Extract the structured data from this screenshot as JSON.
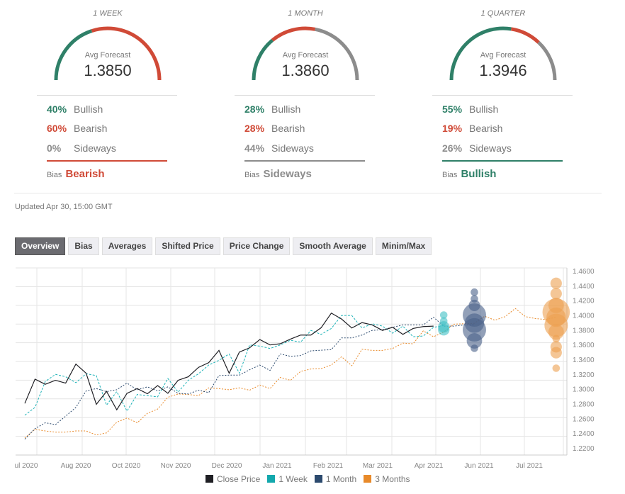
{
  "cards": [
    {
      "title": "1 WEEK",
      "avg_label": "Avg Forecast",
      "avg": "1.3850",
      "bullish": "40%",
      "bearish": "60%",
      "sideways": "0%",
      "bullish_label": "Bullish",
      "bearish_label": "Bearish",
      "sideways_label": "Sideways",
      "bias_label": "Bias",
      "bias": "Bearish",
      "bias_color": "#d04a37",
      "gauge": [
        40,
        60,
        0
      ]
    },
    {
      "title": "1 MONTH",
      "avg_label": "Avg Forecast",
      "avg": "1.3860",
      "bullish": "28%",
      "bearish": "28%",
      "sideways": "44%",
      "bullish_label": "Bullish",
      "bearish_label": "Bearish",
      "sideways_label": "Sideways",
      "bias_label": "Bias",
      "bias": "Sideways",
      "bias_color": "#8c8c8c",
      "gauge": [
        28,
        28,
        44
      ]
    },
    {
      "title": "1 QUARTER",
      "avg_label": "Avg Forecast",
      "avg": "1.3946",
      "bullish": "55%",
      "bearish": "19%",
      "sideways": "26%",
      "bullish_label": "Bullish",
      "bearish_label": "Bearish",
      "sideways_label": "Sideways",
      "bias_label": "Bias",
      "bias": "Bullish",
      "bias_color": "#2f8068",
      "gauge": [
        55,
        19,
        26
      ]
    }
  ],
  "colors": {
    "bullish": "#2f8068",
    "bearish": "#d04a37",
    "sideways": "#8c8c8c"
  },
  "updated": "Updated Apr 30, 15:00 GMT",
  "tabs": [
    "Overview",
    "Bias",
    "Averages",
    "Shifted Price",
    "Price Change",
    "Smooth Average",
    "Minim/Max"
  ],
  "chart_data": {
    "type": "line",
    "ylim": [
      1.22,
      1.46
    ],
    "yticks": [
      "1.4600",
      "1.4400",
      "1.4200",
      "1.4000",
      "1.3800",
      "1.3600",
      "1.3400",
      "1.3200",
      "1.3000",
      "1.2800",
      "1.2600",
      "1.2400",
      "1.2200"
    ],
    "xticks": [
      "ul 2020",
      "Aug 2020",
      "Oct 2020",
      "Nov 2020",
      "Dec 2020",
      "Jan 2021",
      "Feb 2021",
      "Mar 2021",
      "Apr 2021",
      "Jun 2021",
      "Jul 2021"
    ],
    "series": [
      {
        "name": "Close Price",
        "color": "#1f1f24",
        "style": "solid",
        "values": [
          1.2803,
          1.3132,
          1.3062,
          1.3116,
          1.3078,
          1.3336,
          1.3212,
          1.279,
          1.2966,
          1.2717,
          1.294,
          1.3004,
          1.2934,
          1.3045,
          1.294,
          1.3116,
          1.3164,
          1.3291,
          1.3355,
          1.3521,
          1.3212,
          1.3499,
          1.3556,
          1.3668,
          1.3595,
          1.3611,
          1.3674,
          1.3729,
          1.3729,
          1.3828,
          1.4026,
          1.3946,
          1.3824,
          1.3898,
          1.3866,
          1.3792,
          1.3834,
          1.3738,
          1.3818,
          1.3844,
          1.385
        ]
      },
      {
        "name": "1 Week",
        "color": "#1fb3b8",
        "style": "dash",
        "values": [
          1.2643,
          1.2749,
          1.31,
          1.3196,
          1.3164,
          1.3084,
          1.3205,
          1.318,
          1.278,
          1.2963,
          1.27,
          1.2924,
          1.2908,
          1.2892,
          1.3141,
          1.2956,
          1.3116,
          1.3205,
          1.3323,
          1.3387,
          1.3473,
          1.3212,
          1.3595,
          1.3579,
          1.3547,
          1.3595,
          1.3658,
          1.3633,
          1.3792,
          1.3738,
          1.3818,
          1.3994,
          1.3994,
          1.3824,
          1.3882,
          1.385,
          1.3754,
          1.385,
          1.3706,
          1.3716,
          1.3834,
          1.3856
        ]
      },
      {
        "name": "1 Month",
        "color": "#2c4a6e",
        "style": "dot",
        "values": [
          1.2318,
          1.2461,
          1.2541,
          1.2516,
          1.2631,
          1.2749,
          1.2972,
          1.3004,
          1.2963,
          1.2988,
          1.3078,
          1.2988,
          1.3027,
          1.2972,
          1.3027,
          1.294,
          1.2931,
          1.2982,
          1.295,
          1.318,
          1.3186,
          1.3186,
          1.3259,
          1.3323,
          1.325,
          1.3473,
          1.3441,
          1.3451,
          1.3515,
          1.3524,
          1.3531,
          1.369,
          1.369,
          1.3729,
          1.3792,
          1.3802,
          1.3834,
          1.3866,
          1.3866,
          1.3866,
          1.3971,
          1.385,
          1.385,
          1.3866,
          1.3866
        ]
      },
      {
        "name": "3 Months",
        "color": "#e88a2a",
        "style": "dot",
        "values": [
          1.2334,
          1.2452,
          1.243,
          1.2414,
          1.2414,
          1.243,
          1.243,
          1.2375,
          1.2404,
          1.2548,
          1.2605,
          1.2541,
          1.2669,
          1.2726,
          1.2886,
          1.2931,
          1.2924,
          1.2908,
          1.3014,
          1.3004,
          1.2988,
          1.3014,
          1.2982,
          1.3052,
          1.3004,
          1.3154,
          1.3116,
          1.3237,
          1.3269,
          1.3275,
          1.3323,
          1.3435,
          1.3314,
          1.3537,
          1.3521,
          1.3521,
          1.3547,
          1.362,
          1.361,
          1.3786,
          1.3706,
          1.377,
          1.3876,
          1.3882,
          1.3888,
          1.3984,
          1.393,
          1.3978,
          1.4089,
          1.3978,
          1.3952,
          1.3939,
          1.3971
        ]
      }
    ],
    "bubbles": [
      {
        "name": "1 Week",
        "color": "#3fc0c4",
        "index": 41,
        "points": [
          [
            1.4,
            1
          ],
          [
            1.392,
            1
          ],
          [
            1.384,
            2
          ],
          [
            1.38,
            2
          ]
        ]
      },
      {
        "name": "1 Month",
        "color": "#4a6088",
        "index": 44,
        "points": [
          [
            1.431,
            1
          ],
          [
            1.422,
            1
          ],
          [
            1.413,
            2
          ],
          [
            1.4,
            5
          ],
          [
            1.389,
            4
          ],
          [
            1.38,
            5
          ],
          [
            1.365,
            3
          ],
          [
            1.355,
            1
          ]
        ]
      },
      {
        "name": "3 Months",
        "color": "#eda050",
        "index": 52,
        "points": [
          [
            1.443,
            2
          ],
          [
            1.429,
            2
          ],
          [
            1.413,
            3
          ],
          [
            1.404,
            6
          ],
          [
            1.397,
            4
          ],
          [
            1.386,
            5
          ],
          [
            1.377,
            3
          ],
          [
            1.368,
            1
          ],
          [
            1.357,
            2
          ],
          [
            1.349,
            2
          ],
          [
            1.328,
            1
          ]
        ]
      }
    ]
  },
  "legend": [
    {
      "label": "Close Price",
      "color": "#1f1f24"
    },
    {
      "label": "1 Week",
      "color": "#13a8ad"
    },
    {
      "label": "1 Month",
      "color": "#2c4a6e"
    },
    {
      "label": "3 Months",
      "color": "#e88a2a"
    }
  ]
}
